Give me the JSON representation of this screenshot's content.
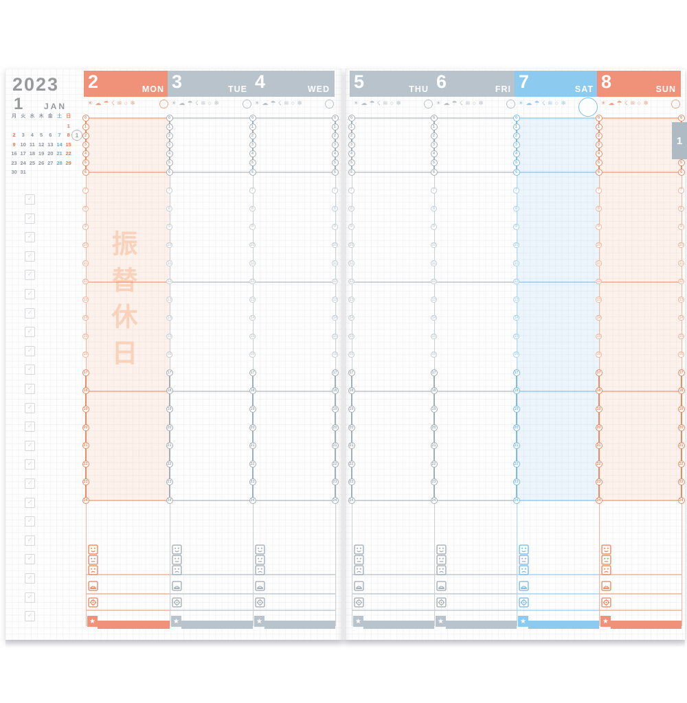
{
  "header": {
    "year": "2023",
    "month": "1",
    "month_abbr": "JAN",
    "week_tab": "1"
  },
  "mini_calendar": {
    "dow": [
      {
        "t": "月",
        "c": "g"
      },
      {
        "t": "火",
        "c": "g"
      },
      {
        "t": "水",
        "c": "g"
      },
      {
        "t": "木",
        "c": "g"
      },
      {
        "t": "金",
        "c": "g"
      },
      {
        "t": "土",
        "c": "b"
      },
      {
        "t": "日",
        "c": "o"
      }
    ],
    "weeks": [
      [
        {
          "t": "",
          "c": ""
        },
        {
          "t": "",
          "c": ""
        },
        {
          "t": "",
          "c": ""
        },
        {
          "t": "",
          "c": ""
        },
        {
          "t": "",
          "c": ""
        },
        {
          "t": "",
          "c": ""
        },
        {
          "t": "1",
          "c": "o"
        }
      ],
      [
        {
          "t": "2",
          "c": "o"
        },
        {
          "t": "3",
          "c": "g"
        },
        {
          "t": "4",
          "c": "g"
        },
        {
          "t": "5",
          "c": "g"
        },
        {
          "t": "6",
          "c": "g"
        },
        {
          "t": "7",
          "c": "b"
        },
        {
          "t": "8",
          "c": "o"
        }
      ],
      [
        {
          "t": "9",
          "c": "o"
        },
        {
          "t": "10",
          "c": "g"
        },
        {
          "t": "11",
          "c": "g"
        },
        {
          "t": "12",
          "c": "g"
        },
        {
          "t": "13",
          "c": "g"
        },
        {
          "t": "14",
          "c": "b"
        },
        {
          "t": "15",
          "c": "o"
        }
      ],
      [
        {
          "t": "16",
          "c": "g"
        },
        {
          "t": "17",
          "c": "g"
        },
        {
          "t": "18",
          "c": "g"
        },
        {
          "t": "19",
          "c": "g"
        },
        {
          "t": "20",
          "c": "g"
        },
        {
          "t": "21",
          "c": "b"
        },
        {
          "t": "22",
          "c": "o"
        }
      ],
      [
        {
          "t": "23",
          "c": "g"
        },
        {
          "t": "24",
          "c": "g"
        },
        {
          "t": "25",
          "c": "g"
        },
        {
          "t": "26",
          "c": "g"
        },
        {
          "t": "27",
          "c": "g"
        },
        {
          "t": "28",
          "c": "b"
        },
        {
          "t": "29",
          "c": "o"
        }
      ],
      [
        {
          "t": "30",
          "c": "g"
        },
        {
          "t": "31",
          "c": "g"
        },
        {
          "t": "",
          "c": ""
        },
        {
          "t": "",
          "c": ""
        },
        {
          "t": "",
          "c": ""
        },
        {
          "t": "",
          "c": ""
        },
        {
          "t": "",
          "c": ""
        }
      ]
    ],
    "week_badge": "1",
    "badge_row": 1
  },
  "days": [
    {
      "date": "2",
      "abbr": "MON",
      "scheme": "orange",
      "shaded": true,
      "watermark": "振替休日",
      "moon_large": false
    },
    {
      "date": "3",
      "abbr": "TUE",
      "scheme": "gray",
      "shaded": false,
      "watermark": "",
      "moon_large": false
    },
    {
      "date": "4",
      "abbr": "WED",
      "scheme": "gray",
      "shaded": false,
      "watermark": "",
      "moon_large": false
    },
    {
      "date": "5",
      "abbr": "THU",
      "scheme": "gray",
      "shaded": false,
      "watermark": "",
      "moon_large": false
    },
    {
      "date": "6",
      "abbr": "FRI",
      "scheme": "gray",
      "shaded": false,
      "watermark": "",
      "moon_large": false
    },
    {
      "date": "7",
      "abbr": "SAT",
      "scheme": "blue",
      "shaded": true,
      "watermark": "",
      "moon_large": true
    },
    {
      "date": "8",
      "abbr": "SUN",
      "scheme": "orange",
      "shaded": true,
      "watermark": "",
      "moon_large": false
    }
  ],
  "pages": {
    "left": {
      "day_indexes": [
        0,
        1,
        2
      ],
      "edge_scheme": "gray"
    },
    "right": {
      "day_indexes": [
        3,
        4,
        5,
        6
      ],
      "edge_scheme": "orange"
    }
  },
  "timeline": {
    "hours": [
      0,
      1,
      2,
      3,
      4,
      5,
      6,
      7,
      8,
      9,
      10,
      11,
      12,
      13,
      14,
      15,
      16,
      17,
      18,
      19,
      20,
      21,
      22,
      23,
      24
    ],
    "compressed_through": 6,
    "bold_from": 17,
    "ruled_hours": [
      0,
      6,
      12,
      18,
      24
    ]
  },
  "weather_icons": [
    "sun",
    "cloud",
    "umbrella",
    "thunder",
    "wind",
    "raindrop",
    "snow"
  ],
  "tracker_icons": [
    "mood-good",
    "mood-neutral",
    "mood-bad",
    "meal",
    "medicine",
    "star"
  ],
  "todo": {
    "checkbox_count": 23
  },
  "colors": {
    "orange": {
      "header": "#f0927a",
      "main": "#ec8a63",
      "light": "#f3b79e",
      "pale": "rgba(244,164,112,0.13)",
      "wm": "#f8d2bb"
    },
    "gray": {
      "header": "#b9c3cb",
      "main": "#a4aeb6",
      "light": "#cbd0d5",
      "pale": ""
    },
    "blue": {
      "header": "#8dcaf0",
      "main": "#79bce6",
      "light": "#a9d6f2",
      "pale": "rgba(140,200,240,0.16)"
    },
    "cal_gray": "#8e959b",
    "cal_blue": "#64aee0",
    "cal_orange": "#e87a50",
    "title_gray": "#97999c",
    "tab_bg": "#aebbc4"
  }
}
